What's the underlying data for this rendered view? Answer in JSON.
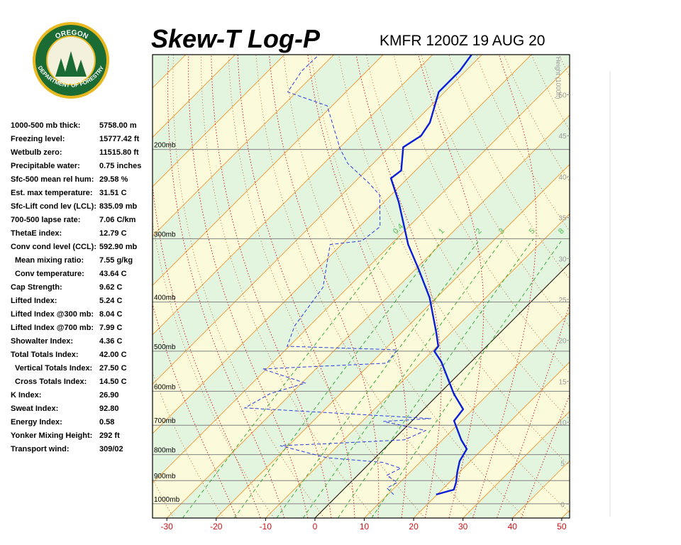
{
  "logo": {
    "top": "OREGON",
    "bottom": "DEPARTMENT OF FORESTRY"
  },
  "indices": [
    {
      "label": "1000-500 mb thick:",
      "value": "5758.00 m"
    },
    {
      "label": "Freezing level:",
      "value": "15777.42 ft"
    },
    {
      "label": "Wetbulb zero:",
      "value": "11515.80 ft"
    },
    {
      "label": "Precipitable water:",
      "value": "0.75 inches"
    },
    {
      "label": "Sfc-500 mean rel hum:",
      "value": "29.58 %"
    },
    {
      "label": "Est. max temperature:",
      "value": "31.51 C"
    },
    {
      "label": "Sfc-Lift cond lev (LCL):",
      "value": "835.09 mb"
    },
    {
      "label": "700-500 lapse rate:",
      "value": "7.06 C/km"
    },
    {
      "label": "ThetaE index:",
      "value": "12.79 C"
    },
    {
      "label": "Conv cond level (CCL):",
      "value": "592.90 mb"
    },
    {
      "label": "Mean mixing ratio:",
      "value": "7.55 g/kg"
    },
    {
      "label": "Conv temperature:",
      "value": "43.64 C"
    },
    {
      "label": "Cap Strength:",
      "value": "9.62 C"
    },
    {
      "label": "Lifted Index:",
      "value": "5.24 C"
    },
    {
      "label": "Lifted Index @300 mb:",
      "value": "8.04 C"
    },
    {
      "label": "Lifted Index @700 mb:",
      "value": "7.99 C"
    },
    {
      "label": "Showalter Index:",
      "value": "4.36 C"
    },
    {
      "label": "Total Totals Index:",
      "value": "42.00 C"
    },
    {
      "label": "Vertical Totals Index:",
      "value": "27.50 C"
    },
    {
      "label": "Cross Totals Index:",
      "value": "14.50 C"
    },
    {
      "label": "K Index:",
      "value": "26.90"
    },
    {
      "label": "Sweat Index:",
      "value": "92.80"
    },
    {
      "label": "Energy Index:",
      "value": "0.58"
    },
    {
      "label": "Yonker Mixing Height:",
      "value": "292 ft"
    },
    {
      "label": "Transport wind:",
      "value": "309/02"
    }
  ],
  "chart_data": {
    "type": "skewt",
    "title": "Skew-T Log-P",
    "subtitle": "KMFR 1200Z 19 AUG 20",
    "xlim": [
      -32.9,
      51.6
    ],
    "xticks": [
      -30,
      -20,
      -10,
      0,
      10,
      20,
      30,
      40,
      50
    ],
    "ylim": [
      1067,
      130
    ],
    "log_y": true,
    "yticks": [
      {
        "value": 1000,
        "label": "1000mb"
      },
      {
        "value": 900,
        "label": "900mb"
      },
      {
        "value": 800,
        "label": "800mb"
      },
      {
        "value": 700,
        "label": "700mb"
      },
      {
        "value": 600,
        "label": "600mb"
      },
      {
        "value": 500,
        "label": "500mb"
      },
      {
        "value": 400,
        "label": "400mb"
      },
      {
        "value": 300,
        "label": "300mb"
      },
      {
        "value": 200,
        "label": "200mb"
      }
    ],
    "y2label": "Height (1000ft)",
    "y2lim": [
      -1.7,
      54.9
    ],
    "y2ticks": [
      0,
      5,
      10,
      15,
      20,
      25,
      30,
      35,
      40,
      45,
      50
    ],
    "mixing_ratios": [
      0.4,
      1,
      2,
      3,
      5,
      8
    ],
    "series": [
      {
        "color": "#0a1ed8",
        "line_style": "solid",
        "values": [
          19.8,
          22.4,
          21.4,
          19.5,
          17.8,
          16.8,
          13.8,
          8.5,
          8.0,
          3.0,
          -6.0,
          -9.6,
          -9.8,
          -12.8,
          -21.4,
          -29.3,
          -36.5,
          -47.0,
          -53.4,
          -52.9,
          -57.2,
          -55.9,
          -56.8,
          -61.2,
          -61.2,
          -62.1
        ],
        "pressures": [
          959,
          938,
          908,
          865,
          824,
          780,
          748,
          686,
          651,
          607,
          525,
          500,
          489,
          461,
          392,
          345,
          308,
          254,
          228,
          220,
          198,
          188,
          177,
          154,
          140,
          130
        ]
      },
      {
        "color": "#2a3ce0",
        "line_style": "dashed",
        "values": [
          11.2,
          8.5,
          9.5,
          5.9,
          7.3,
          2.6,
          -9.9,
          -21.7,
          -11.4,
          2.3,
          4.7,
          -5.7,
          3.4,
          -36.5,
          -34.3,
          -29.3,
          -40.8,
          -16.8,
          -17.4,
          -40.4,
          -43.0,
          -45.1,
          -52.3,
          -46.6,
          -45.8,
          -52.3,
          -56.9,
          -65.2,
          -69.8,
          -81.0,
          -91.8,
          -93.2,
          -93.0
        ],
        "pressures": [
          959,
          931,
          908,
          879,
          851,
          829,
          811,
          768,
          760,
          748,
          717,
          688,
          679,
          647,
          607,
          578,
          542,
          528,
          497,
          489,
          446,
          374,
          308,
          303,
          284,
          246,
          233,
          213,
          199,
          164,
          154,
          140,
          130
        ]
      }
    ]
  }
}
